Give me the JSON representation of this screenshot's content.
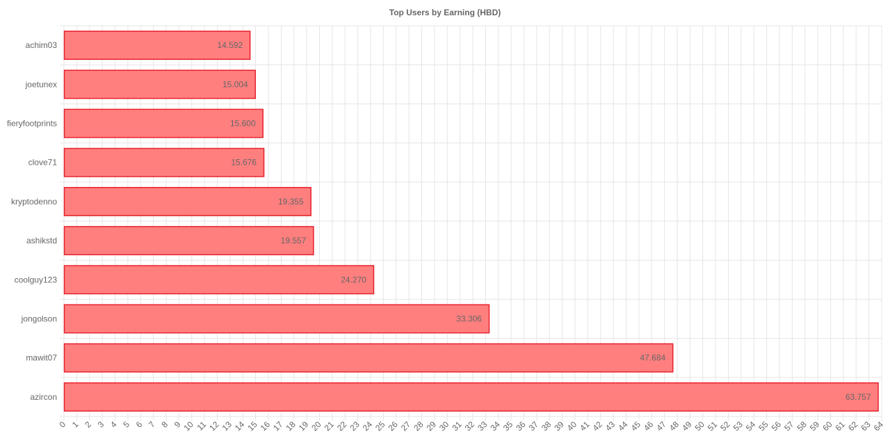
{
  "chart_data": {
    "type": "bar",
    "orientation": "horizontal",
    "title": "Top Users by Earning (HBD)",
    "xlabel": "",
    "ylabel": "",
    "categories": [
      "achim03",
      "joetunex",
      "fieryfootprints",
      "clove71",
      "kryptodenno",
      "ashikstd",
      "coolguy123",
      "jongolson",
      "mawit07",
      "azircon"
    ],
    "values": [
      14.592,
      15.004,
      15.6,
      15.676,
      19.355,
      19.557,
      24.27,
      33.306,
      47.684,
      63.757
    ],
    "value_labels": [
      "14.592",
      "15.004",
      "15.600",
      "15.676",
      "19.355",
      "19.557",
      "24.270",
      "33.306",
      "47.684",
      "63.757"
    ],
    "xlim": [
      0,
      64
    ],
    "x_ticks_step": 1,
    "grid": true,
    "colors": {
      "bar_fill": "#ff7f7f",
      "bar_stroke": "#e8202a",
      "grid": "#e5e5e5",
      "text": "#666666"
    }
  }
}
